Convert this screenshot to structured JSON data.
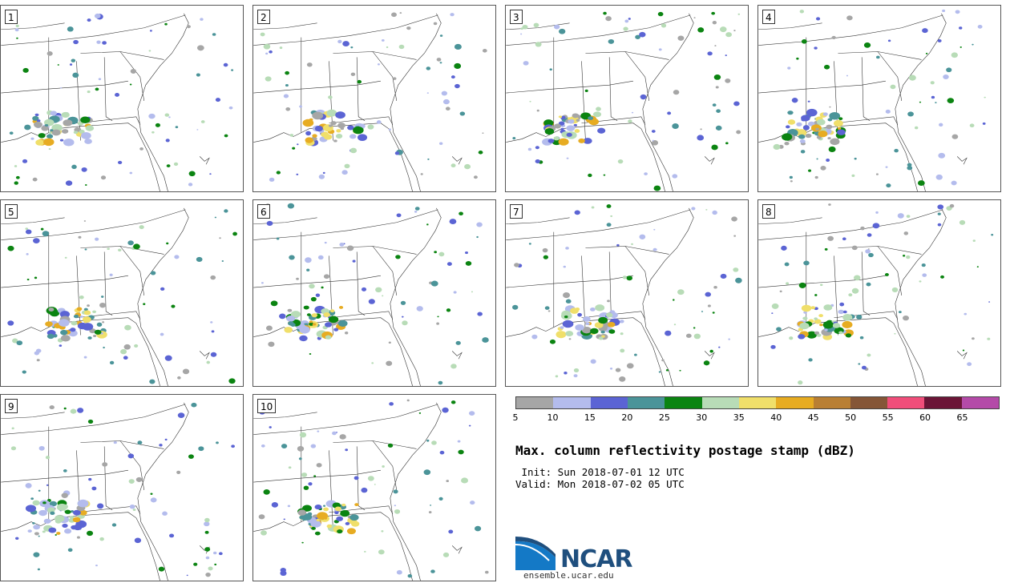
{
  "panels": [
    {
      "label": "1"
    },
    {
      "label": "2"
    },
    {
      "label": "3"
    },
    {
      "label": "4"
    },
    {
      "label": "5"
    },
    {
      "label": "6"
    },
    {
      "label": "7"
    },
    {
      "label": "8"
    },
    {
      "label": "9"
    },
    {
      "label": "10"
    }
  ],
  "colorbar": {
    "colors": [
      "#a6a6a6",
      "#b4bced",
      "#5b64d4",
      "#4b9499",
      "#0b8411",
      "#b8dcb7",
      "#f0df6a",
      "#e7ac22",
      "#b97f33",
      "#855637",
      "#f04e7a",
      "#6b1537",
      "#b44aa8"
    ],
    "labels": [
      "5",
      "10",
      "15",
      "20",
      "25",
      "30",
      "35",
      "40",
      "45",
      "50",
      "55",
      "60",
      "65"
    ]
  },
  "title": "Max. column reflectivity postage stamp (dBZ)",
  "init": " Init: Sun 2018-07-01 12 UTC",
  "valid": "Valid: Mon 2018-07-02 05 UTC",
  "logo": {
    "text": "NCAR",
    "url": "ensemble.ucar.edu"
  }
}
